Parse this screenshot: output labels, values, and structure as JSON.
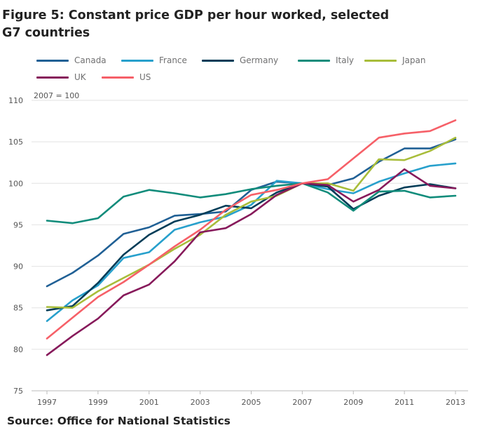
{
  "figure": {
    "title": "Figure 5: Constant price GDP per hour worked, selected G7 countries",
    "source": "Source: Office for National Statistics"
  },
  "chart_data": {
    "type": "line",
    "title": "Figure 5: Constant price GDP per hour worked, selected G7 countries",
    "ylabel": "2007 = 100",
    "xlabel": "",
    "x": [
      1997,
      1998,
      1999,
      2000,
      2001,
      2002,
      2003,
      2004,
      2005,
      2006,
      2007,
      2008,
      2009,
      2010,
      2011,
      2012,
      2013
    ],
    "xticks": [
      "1997",
      "1999",
      "2001",
      "2003",
      "2005",
      "2007",
      "2009",
      "2011",
      "2013"
    ],
    "yticks": [
      "75",
      "80",
      "85",
      "90",
      "95",
      "100",
      "105",
      "110"
    ],
    "ylim": [
      75,
      110
    ],
    "grid": true,
    "legend_position": "top",
    "series": [
      {
        "name": "Canada",
        "color": "#206095",
        "values": [
          87.6,
          89.2,
          91.3,
          93.9,
          94.7,
          96.1,
          96.3,
          96.6,
          99.2,
          100.2,
          100.0,
          99.8,
          100.6,
          102.6,
          104.2,
          104.2,
          105.3
        ]
      },
      {
        "name": "France",
        "color": "#27a0cc",
        "values": [
          83.4,
          85.9,
          87.7,
          91.0,
          91.7,
          94.4,
          95.3,
          96.0,
          97.4,
          100.3,
          100.0,
          99.3,
          98.8,
          100.2,
          101.2,
          102.1,
          102.4
        ]
      },
      {
        "name": "Germany",
        "color": "#003c57",
        "values": [
          84.7,
          85.2,
          88.0,
          91.4,
          93.8,
          95.4,
          96.2,
          97.3,
          97.0,
          98.9,
          100.0,
          99.6,
          96.9,
          98.5,
          99.5,
          99.9,
          99.4
        ]
      },
      {
        "name": "Italy",
        "color": "#118c7b",
        "values": [
          95.5,
          95.2,
          95.8,
          98.4,
          99.2,
          98.8,
          98.3,
          98.7,
          99.3,
          99.7,
          100.0,
          98.9,
          96.7,
          99.0,
          99.1,
          98.3,
          98.5
        ]
      },
      {
        "name": "Japan",
        "color": "#a8bd3a",
        "values": [
          85.1,
          85.0,
          87.0,
          88.6,
          90.2,
          92.1,
          93.8,
          96.2,
          97.8,
          98.5,
          100.0,
          100.0,
          99.1,
          102.9,
          102.8,
          103.9,
          105.5
        ]
      },
      {
        "name": "UK",
        "color": "#871a5b",
        "values": [
          79.3,
          81.6,
          83.7,
          86.5,
          87.8,
          90.6,
          94.1,
          94.6,
          96.3,
          98.6,
          100.0,
          99.8,
          97.8,
          99.2,
          101.7,
          99.7,
          99.4
        ]
      },
      {
        "name": "US",
        "color": "#f66068",
        "values": [
          81.3,
          83.8,
          86.3,
          88.1,
          90.2,
          92.4,
          94.4,
          96.8,
          98.6,
          99.2,
          100.0,
          100.5,
          103.0,
          105.5,
          106.0,
          106.3,
          107.6
        ]
      }
    ]
  }
}
